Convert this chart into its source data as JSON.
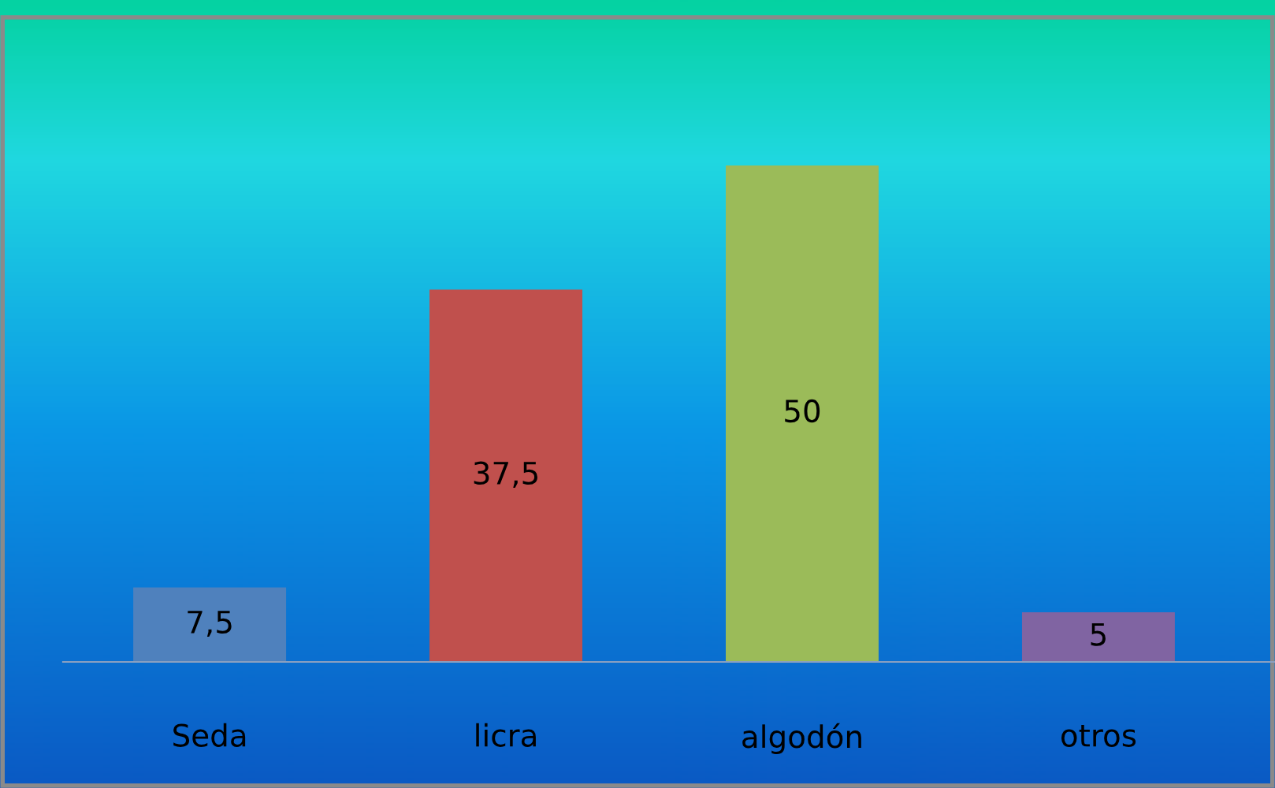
{
  "chart_data": {
    "type": "bar",
    "categories": [
      "Seda",
      "licra",
      "algodón",
      "otros"
    ],
    "values": [
      7.5,
      37.5,
      50,
      5
    ],
    "colors": [
      "#4f81bd",
      "#c0504d",
      "#9bbb59",
      "#8064a2"
    ],
    "value_labels": [
      "7,5",
      "37,5",
      "50",
      "5"
    ],
    "grid": false,
    "legend": false
  }
}
